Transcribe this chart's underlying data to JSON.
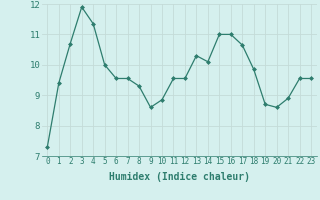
{
  "x": [
    0,
    1,
    2,
    3,
    4,
    5,
    6,
    7,
    8,
    9,
    10,
    11,
    12,
    13,
    14,
    15,
    16,
    17,
    18,
    19,
    20,
    21,
    22,
    23
  ],
  "y": [
    7.3,
    9.4,
    10.7,
    11.9,
    11.35,
    10.0,
    9.55,
    9.55,
    9.3,
    8.6,
    8.85,
    9.55,
    9.55,
    10.3,
    10.1,
    11.0,
    11.0,
    10.65,
    9.85,
    8.7,
    8.6,
    8.9,
    9.55,
    9.55
  ],
  "line_color": "#2e7d6e",
  "marker": "D",
  "marker_size": 2.0,
  "xlabel": "Humidex (Indice chaleur)",
  "xlabel_fontsize": 7,
  "ylabel": "",
  "ylim": [
    7,
    12
  ],
  "xlim": [
    -0.5,
    23.5
  ],
  "yticks": [
    7,
    8,
    9,
    10,
    11,
    12
  ],
  "xticks": [
    0,
    1,
    2,
    3,
    4,
    5,
    6,
    7,
    8,
    9,
    10,
    11,
    12,
    13,
    14,
    15,
    16,
    17,
    18,
    19,
    20,
    21,
    22,
    23
  ],
  "tick_fontsize": 5.5,
  "ytick_fontsize": 6.5,
  "bg_color": "#d5f0ee",
  "grid_color": "#c4dbd8",
  "line_width": 0.9
}
